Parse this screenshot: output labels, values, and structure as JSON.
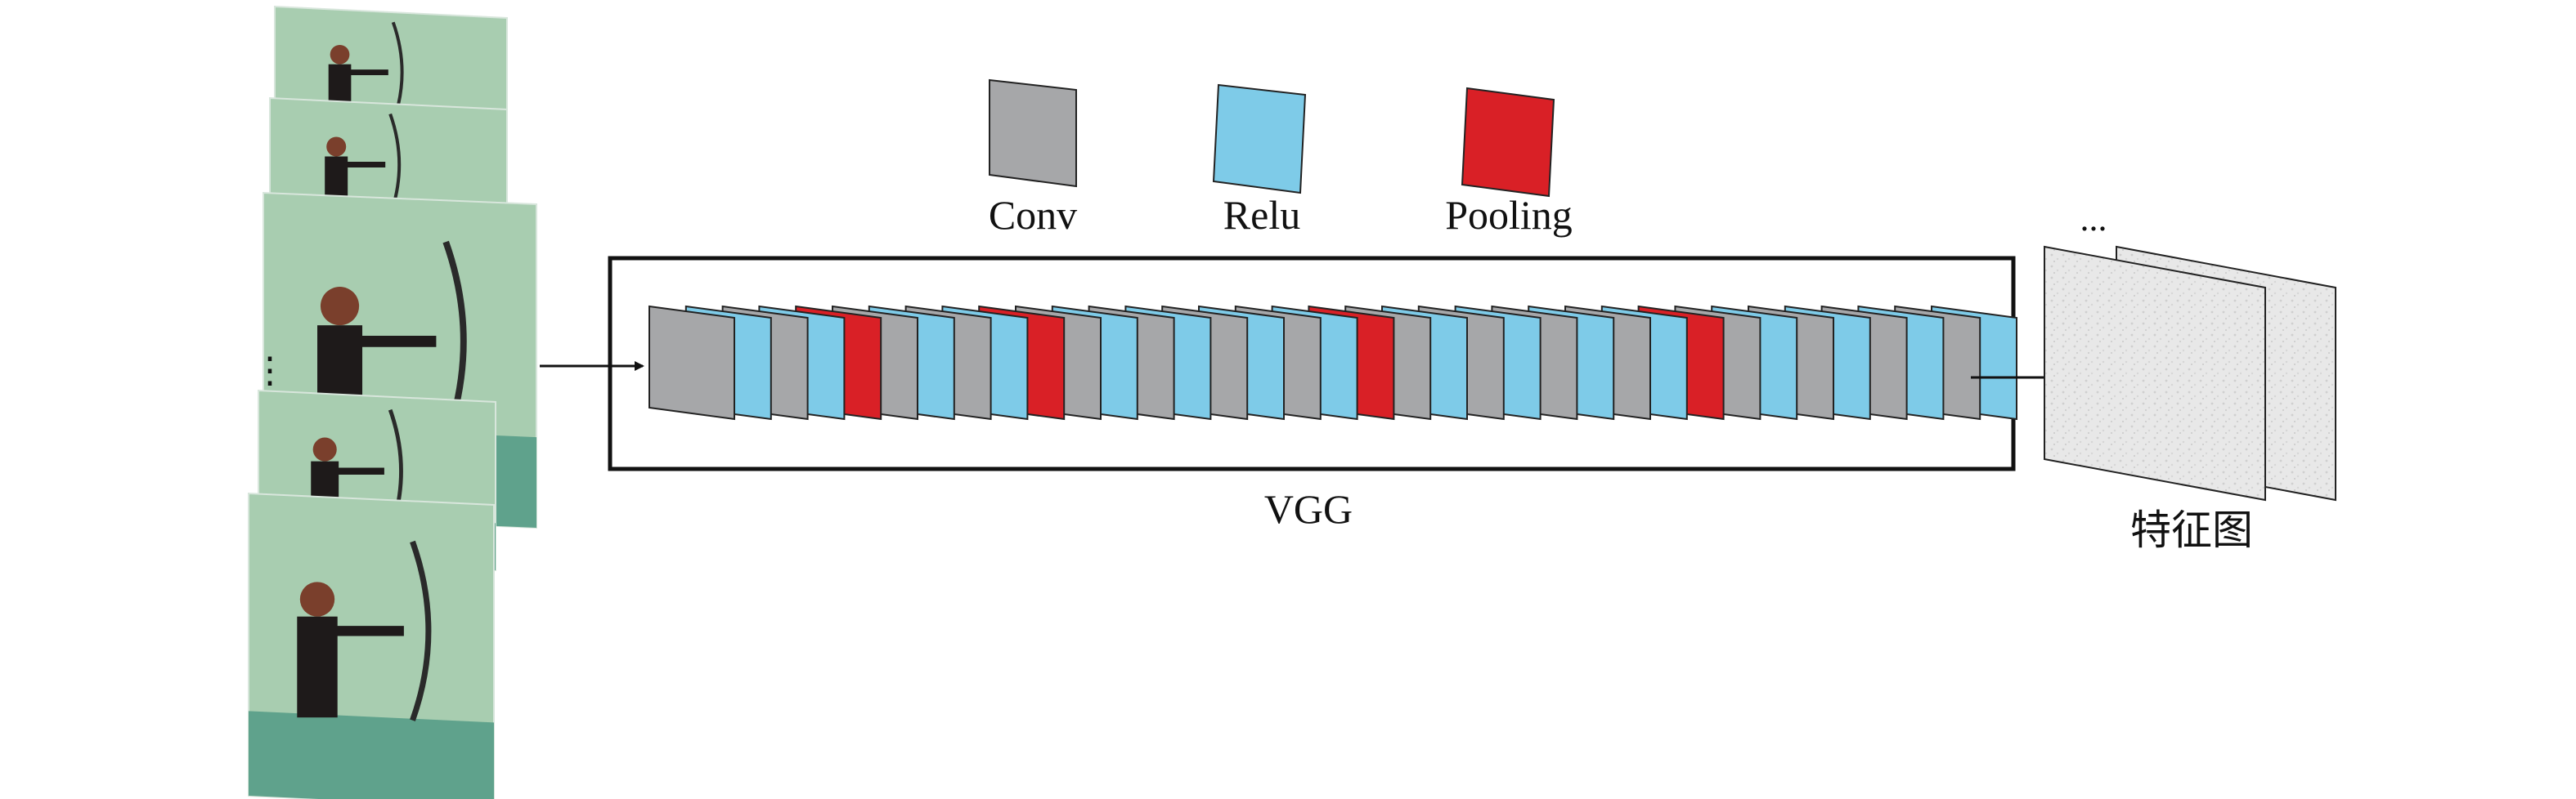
{
  "legend": {
    "items": [
      {
        "label": "Conv",
        "color": "#a6a7a9"
      },
      {
        "label": "Relu",
        "color": "#7ecbe8"
      },
      {
        "label": "Pooling",
        "color": "#d92026"
      }
    ]
  },
  "network": {
    "label": "VGG",
    "layer_sequence": [
      "conv",
      "relu",
      "conv",
      "relu",
      "pool",
      "conv",
      "relu",
      "conv",
      "relu",
      "pool",
      "conv",
      "relu",
      "conv",
      "relu",
      "conv",
      "relu",
      "conv",
      "relu",
      "pool",
      "conv",
      "relu",
      "conv",
      "relu",
      "conv",
      "relu",
      "conv",
      "relu",
      "pool",
      "conv",
      "relu",
      "conv",
      "relu",
      "conv",
      "relu",
      "conv",
      "relu"
    ]
  },
  "input": {
    "frames": [
      "archer-frame",
      "archer-frame",
      "archer-frame",
      "archer-frame",
      "archer-frame"
    ],
    "ellipsis": "⋮"
  },
  "output": {
    "label": "特征图",
    "ellipsis": "..."
  },
  "colors": {
    "stroke": "#222222",
    "map_fill": "#e6e6e6",
    "photo_wall": "#a8cdb0",
    "photo_floor": "#5fa28c"
  }
}
